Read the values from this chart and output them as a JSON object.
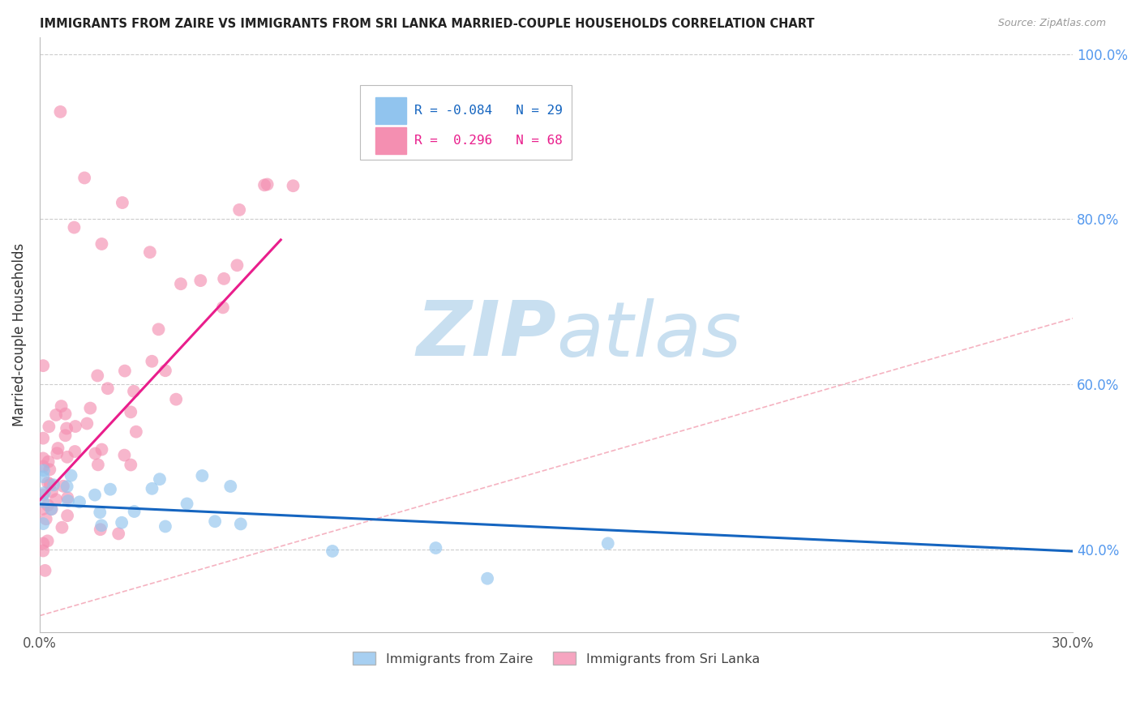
{
  "title": "IMMIGRANTS FROM ZAIRE VS IMMIGRANTS FROM SRI LANKA MARRIED-COUPLE HOUSEHOLDS CORRELATION CHART",
  "source": "Source: ZipAtlas.com",
  "ylabel": "Married-couple Households",
  "legend_zaire": "Immigrants from Zaire",
  "legend_srilanka": "Immigrants from Sri Lanka",
  "R_zaire": -0.084,
  "N_zaire": 29,
  "R_srilanka": 0.296,
  "N_srilanka": 68,
  "xmin": 0.0,
  "xmax": 0.3,
  "ymin": 0.3,
  "ymax": 1.02,
  "color_zaire": "#91C4EE",
  "color_srilanka": "#F48FB1",
  "line_color_zaire": "#1565C0",
  "line_color_srilanka": "#E91E8C",
  "diag_color": "#F4AABA",
  "background_color": "#FFFFFF",
  "watermark_zip": "ZIP",
  "watermark_atlas": "atlas",
  "watermark_color": "#C8DFF0",
  "grid_color": "#CCCCCC",
  "ytick_color": "#5599EE"
}
